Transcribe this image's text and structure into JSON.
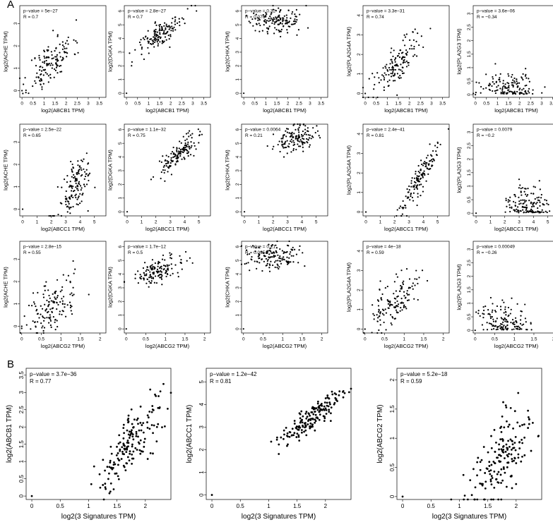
{
  "figure": {
    "panel_a_label": "A",
    "panel_b_label": "B"
  },
  "chart_data": [
    {
      "panel": "A",
      "row": 1,
      "col": 1,
      "type": "scatter",
      "xlabel": "log2(ABCB1 TPM)",
      "ylabel": "log2(ACHE TPM)",
      "annotation": [
        "p−value = 5e−27",
        "R = 0.7"
      ],
      "xlim": [
        -0.1,
        3.8
      ],
      "ylim": [
        -0.3,
        3.8
      ],
      "xticks": [
        0,
        0.5,
        1,
        1.5,
        2,
        2.5,
        3,
        3.5
      ],
      "yticks": [
        0,
        1,
        2,
        3
      ],
      "xcenter": 1.3,
      "xspread": 0.5,
      "slope": 0.8,
      "intercept": 0.2,
      "noise": 0.5,
      "n": 140,
      "seed": 11
    },
    {
      "panel": "A",
      "row": 1,
      "col": 2,
      "type": "scatter",
      "xlabel": "log2(ABCB1 TPM)",
      "ylabel": "log2(DGKA TPM)",
      "annotation": [
        "p−value = 2.8e−27",
        "R = 0.7"
      ],
      "xlim": [
        -0.1,
        3.8
      ],
      "ylim": [
        -0.3,
        6.4
      ],
      "xticks": [
        0,
        0.5,
        1,
        1.5,
        2,
        2.5,
        3,
        3.5
      ],
      "yticks": [
        0,
        1,
        2,
        3,
        4,
        5,
        6
      ],
      "xcenter": 1.6,
      "xspread": 0.55,
      "slope": 1.1,
      "intercept": 2.6,
      "noise": 0.45,
      "n": 140,
      "seed": 12
    },
    {
      "panel": "A",
      "row": 1,
      "col": 3,
      "type": "scatter",
      "xlabel": "log2(ABCB1 TPM)",
      "ylabel": "log2(CHKA TPM)",
      "annotation": [
        "p−value = 0.32",
        "R = 0.076"
      ],
      "xlim": [
        -0.1,
        3.8
      ],
      "ylim": [
        -0.3,
        6.4
      ],
      "xticks": [
        0,
        0.5,
        1,
        1.5,
        2,
        2.5,
        3,
        3.5
      ],
      "yticks": [
        0,
        1,
        2,
        3,
        4,
        5,
        6
      ],
      "xcenter": 1.5,
      "xspread": 0.6,
      "slope": 0.05,
      "intercept": 5.2,
      "noise": 0.45,
      "n": 140,
      "seed": 13
    },
    {
      "panel": "A",
      "row": 1,
      "col": 4,
      "type": "scatter",
      "xlabel": "log2(ABCB1 TPM)",
      "ylabel": "log2(PLA2G4A TPM)",
      "annotation": [
        "p−value = 3.3e−31",
        "R = 0.74"
      ],
      "xlim": [
        -0.1,
        3.8
      ],
      "ylim": [
        -0.2,
        4.5
      ],
      "xticks": [
        0,
        0.5,
        1,
        1.5,
        2,
        2.5,
        3,
        3.5
      ],
      "yticks": [
        0,
        1,
        2,
        3,
        4
      ],
      "xcenter": 1.5,
      "xspread": 0.55,
      "slope": 1.2,
      "intercept": -0.2,
      "noise": 0.5,
      "n": 140,
      "seed": 14
    },
    {
      "panel": "A",
      "row": 1,
      "col": 5,
      "type": "scatter",
      "xlabel": "log2(ABCB1 TPM)",
      "ylabel": "log2(PLA2G3 TPM)",
      "annotation": [
        "p−value = 3.6e−06",
        "R = −0.34"
      ],
      "xlim": [
        -0.1,
        3.8
      ],
      "ylim": [
        -0.1,
        3.3
      ],
      "xticks": [
        0,
        0.5,
        1,
        1.5,
        2,
        2.5,
        3,
        3.5
      ],
      "yticks": [
        0,
        0.5,
        1,
        1.5,
        2,
        2.5,
        3
      ],
      "xcenter": 1.6,
      "xspread": 0.6,
      "slope": -0.1,
      "intercept": 0.45,
      "noise": 0.35,
      "floor": 0.02,
      "n": 140,
      "seed": 15
    },
    {
      "panel": "A",
      "row": 2,
      "col": 1,
      "type": "scatter",
      "xlabel": "log2(ABCC1 TPM)",
      "ylabel": "log2(ACHE TPM)",
      "annotation": [
        "p−value = 2.5e−22",
        "R = 0.65"
      ],
      "xlim": [
        -0.2,
        5.8
      ],
      "ylim": [
        -0.3,
        3.8
      ],
      "xticks": [
        0,
        1,
        2,
        3,
        4,
        5
      ],
      "yticks": [
        0,
        1,
        2,
        3
      ],
      "xcenter": 3.7,
      "xspread": 0.6,
      "slope": 0.75,
      "intercept": -1.8,
      "noise": 0.55,
      "n": 140,
      "seed": 21
    },
    {
      "panel": "A",
      "row": 2,
      "col": 2,
      "type": "scatter",
      "xlabel": "log2(ABCC1 TPM)",
      "ylabel": "log2(DGKA TPM)",
      "annotation": [
        "p−value = 1.1e−32",
        "R = 0.75"
      ],
      "xlim": [
        -0.2,
        5.8
      ],
      "ylim": [
        -0.3,
        6.4
      ],
      "xticks": [
        0,
        1,
        2,
        3,
        4,
        5
      ],
      "yticks": [
        0,
        1,
        2,
        3,
        4,
        5,
        6
      ],
      "xcenter": 3.6,
      "xspread": 0.65,
      "slope": 0.9,
      "intercept": 1.0,
      "noise": 0.4,
      "n": 140,
      "seed": 22
    },
    {
      "panel": "A",
      "row": 2,
      "col": 3,
      "type": "scatter",
      "xlabel": "log2(ABCC1 TPM)",
      "ylabel": "log2(CHKA TPM)",
      "annotation": [
        "p−value = 0.0064",
        "R = 0.21"
      ],
      "xlim": [
        -0.2,
        5.8
      ],
      "ylim": [
        -0.3,
        6.4
      ],
      "xticks": [
        0,
        1,
        2,
        3,
        4,
        5
      ],
      "yticks": [
        0,
        1,
        2,
        3,
        4,
        5,
        6
      ],
      "xcenter": 3.5,
      "xspread": 0.7,
      "slope": 0.2,
      "intercept": 4.6,
      "noise": 0.45,
      "n": 140,
      "seed": 23
    },
    {
      "panel": "A",
      "row": 2,
      "col": 4,
      "type": "scatter",
      "xlabel": "log2(ABCC1 TPM)",
      "ylabel": "log2(PLA2G4A TPM)",
      "annotation": [
        "p−value = 2.4e−41",
        "R = 0.81"
      ],
      "xlim": [
        -0.2,
        5.8
      ],
      "ylim": [
        -0.2,
        4.5
      ],
      "xticks": [
        0,
        1,
        2,
        3,
        4,
        5
      ],
      "yticks": [
        0,
        1,
        2,
        3,
        4
      ],
      "xcenter": 3.6,
      "xspread": 0.7,
      "slope": 1.1,
      "intercept": -2.4,
      "noise": 0.4,
      "n": 140,
      "seed": 24
    },
    {
      "panel": "A",
      "row": 2,
      "col": 5,
      "type": "scatter",
      "xlabel": "log2(ABCC1 TPM)",
      "ylabel": "log2(PLA2G3 TPM)",
      "annotation": [
        "p−value = 0.0079",
        "R = −0.2"
      ],
      "xlim": [
        -0.2,
        5.8
      ],
      "ylim": [
        -0.1,
        3.3
      ],
      "xticks": [
        0,
        1,
        2,
        3,
        4,
        5
      ],
      "yticks": [
        0,
        0.5,
        1,
        1.5,
        2,
        2.5,
        3
      ],
      "xcenter": 3.6,
      "xspread": 0.7,
      "slope": -0.05,
      "intercept": 0.45,
      "noise": 0.35,
      "floor": 0.02,
      "n": 140,
      "seed": 25
    },
    {
      "panel": "A",
      "row": 3,
      "col": 1,
      "type": "scatter",
      "xlabel": "log2(ABCG2 TPM)",
      "ylabel": "log2(ACHE TPM)",
      "annotation": [
        "p−value = 2.8e−15",
        "R = 0.55"
      ],
      "xlim": [
        -0.05,
        2.15
      ],
      "ylim": [
        -0.3,
        3.8
      ],
      "xticks": [
        0,
        0.5,
        1,
        1.5,
        2
      ],
      "yticks": [
        0,
        1,
        2,
        3
      ],
      "xcenter": 0.75,
      "xspread": 0.35,
      "slope": 1.1,
      "intercept": 0.0,
      "noise": 0.6,
      "n": 140,
      "seed": 31
    },
    {
      "panel": "A",
      "row": 3,
      "col": 2,
      "type": "scatter",
      "xlabel": "log2(ABCG2 TPM)",
      "ylabel": "log2(DGKA TPM)",
      "annotation": [
        "p−value = 1.7e−12",
        "R = 0.5"
      ],
      "xlim": [
        -0.05,
        2.15
      ],
      "ylim": [
        -0.3,
        6.4
      ],
      "xticks": [
        0,
        0.5,
        1,
        1.5,
        2
      ],
      "yticks": [
        0,
        1,
        2,
        3,
        4,
        5,
        6
      ],
      "xcenter": 0.75,
      "xspread": 0.35,
      "slope": 0.8,
      "intercept": 3.6,
      "noise": 0.45,
      "n": 140,
      "seed": 32
    },
    {
      "panel": "A",
      "row": 3,
      "col": 3,
      "type": "scatter",
      "xlabel": "log2(ABCG2 TPM)",
      "ylabel": "log2(CHKA TPM)",
      "annotation": [
        "p−value = 0.21",
        "R = 0.095"
      ],
      "xlim": [
        -0.05,
        2.15
      ],
      "ylim": [
        -0.3,
        6.4
      ],
      "xticks": [
        0,
        0.5,
        1,
        1.5,
        2
      ],
      "yticks": [
        0,
        1,
        2,
        3,
        4,
        5,
        6
      ],
      "xcenter": 0.75,
      "xspread": 0.35,
      "slope": 0.1,
      "intercept": 5.2,
      "noise": 0.45,
      "n": 140,
      "seed": 33
    },
    {
      "panel": "A",
      "row": 3,
      "col": 4,
      "type": "scatter",
      "xlabel": "log2(ABCG2 TPM)",
      "ylabel": "log2(PLA2G4A TPM)",
      "annotation": [
        "p−value = 4e−18",
        "R = 0.59"
      ],
      "xlim": [
        -0.05,
        2.15
      ],
      "ylim": [
        -0.2,
        4.5
      ],
      "xticks": [
        0,
        0.5,
        1,
        1.5,
        2
      ],
      "yticks": [
        0,
        1,
        2,
        3,
        4
      ],
      "xcenter": 0.75,
      "xspread": 0.35,
      "slope": 1.3,
      "intercept": 0.4,
      "noise": 0.6,
      "n": 140,
      "seed": 34
    },
    {
      "panel": "A",
      "row": 3,
      "col": 5,
      "type": "scatter",
      "xlabel": "log2(ABCG2 TPM)",
      "ylabel": "log2(PLA2G3 TPM)",
      "annotation": [
        "p−value = 0.00049",
        "R = −0.26"
      ],
      "xlim": [
        -0.05,
        2.15
      ],
      "ylim": [
        -0.1,
        3.3
      ],
      "xticks": [
        0,
        0.5,
        1,
        1.5,
        2
      ],
      "yticks": [
        0,
        0.5,
        1,
        1.5,
        2,
        2.5,
        3
      ],
      "xcenter": 0.75,
      "xspread": 0.35,
      "slope": -0.1,
      "intercept": 0.4,
      "noise": 0.35,
      "floor": 0.02,
      "n": 140,
      "seed": 35
    },
    {
      "panel": "B",
      "row": 1,
      "col": 1,
      "type": "scatter",
      "xlabel": "log2(3 Signatures TPM)",
      "ylabel": "log2(ABCB1 TPM)",
      "annotation": [
        "p−value = 3.7e−36",
        "R = 0.77"
      ],
      "xlim": [
        -0.1,
        2.45
      ],
      "ylim": [
        -0.1,
        3.7
      ],
      "xticks": [
        0,
        0.5,
        1,
        1.5,
        2
      ],
      "yticks": [
        0,
        0.5,
        1,
        1.5,
        2,
        2.5,
        3,
        3.5
      ],
      "xcenter": 1.75,
      "xspread": 0.3,
      "slope": 1.9,
      "intercept": -1.8,
      "noise": 0.4,
      "n": 170,
      "seed": 41
    },
    {
      "panel": "B",
      "row": 1,
      "col": 2,
      "type": "scatter",
      "xlabel": "log2(3 Signatures TPM)",
      "ylabel": "log2(ABCC1 TPM)",
      "annotation": [
        "p−value = 1.2e−42",
        "R = 0.81"
      ],
      "xlim": [
        -0.1,
        2.45
      ],
      "ylim": [
        -0.2,
        5.6
      ],
      "xticks": [
        0,
        0.5,
        1,
        1.5,
        2
      ],
      "yticks": [
        0,
        1,
        2,
        3,
        4,
        5
      ],
      "xcenter": 1.75,
      "xspread": 0.3,
      "slope": 1.9,
      "intercept": 0.1,
      "noise": 0.3,
      "n": 170,
      "seed": 42
    },
    {
      "panel": "B",
      "row": 1,
      "col": 3,
      "type": "scatter",
      "xlabel": "log2(3 Signatures TPM)",
      "ylabel": "log2(ABCG2 TPM)",
      "annotation": [
        "p−value = 5.2e−18",
        "R = 0.59"
      ],
      "xlim": [
        -0.1,
        2.45
      ],
      "ylim": [
        -0.05,
        2.2
      ],
      "xticks": [
        0,
        0.5,
        1,
        1.5,
        2
      ],
      "yticks": [
        0,
        0.5,
        1,
        1.5,
        2
      ],
      "xcenter": 1.75,
      "xspread": 0.3,
      "slope": 0.85,
      "intercept": -0.8,
      "noise": 0.35,
      "n": 170,
      "seed": 43
    }
  ]
}
